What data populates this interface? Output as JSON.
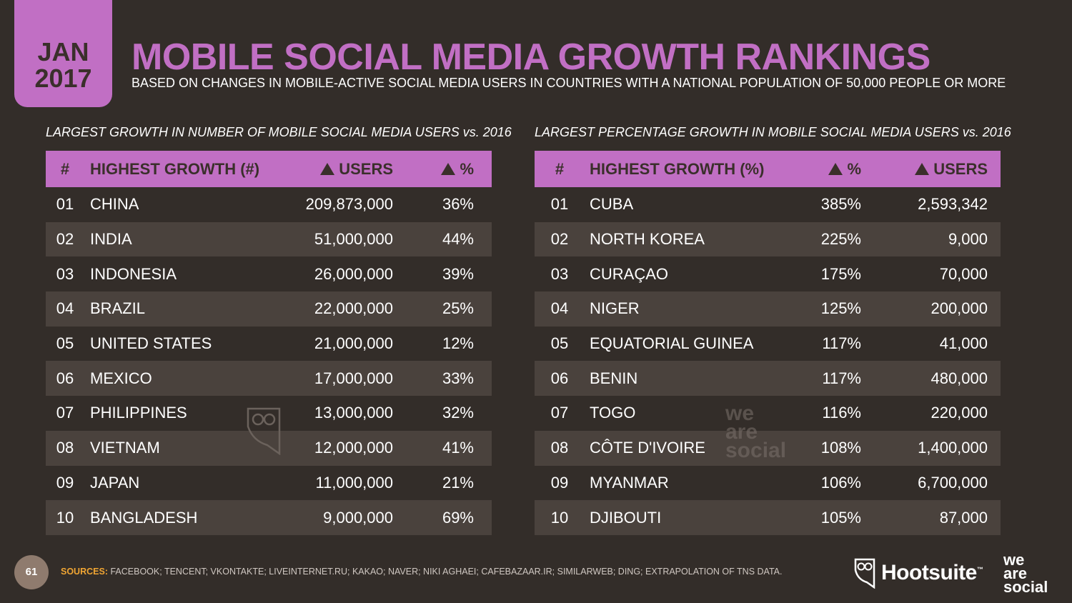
{
  "header": {
    "month": "JAN",
    "year": "2017",
    "title": "MOBILE SOCIAL MEDIA GROWTH RANKINGS",
    "subtitle": "BASED ON CHANGES IN MOBILE-ACTIVE SOCIAL MEDIA USERS IN COUNTRIES WITH A NATIONAL POPULATION OF 50,000 PEOPLE OR MORE"
  },
  "left_table": {
    "label": "LARGEST GROWTH IN NUMBER OF MOBILE SOCIAL MEDIA USERS vs. 2016",
    "headers": {
      "rank": "#",
      "name": "HIGHEST GROWTH (#)",
      "col3": "USERS",
      "col4": "%"
    },
    "rows": [
      {
        "rank": "01",
        "name": "CHINA",
        "c3": "209,873,000",
        "c4": "36%"
      },
      {
        "rank": "02",
        "name": "INDIA",
        "c3": "51,000,000",
        "c4": "44%"
      },
      {
        "rank": "03",
        "name": "INDONESIA",
        "c3": "26,000,000",
        "c4": "39%"
      },
      {
        "rank": "04",
        "name": "BRAZIL",
        "c3": "22,000,000",
        "c4": "25%"
      },
      {
        "rank": "05",
        "name": "UNITED STATES",
        "c3": "21,000,000",
        "c4": "12%"
      },
      {
        "rank": "06",
        "name": "MEXICO",
        "c3": "17,000,000",
        "c4": "33%"
      },
      {
        "rank": "07",
        "name": "PHILIPPINES",
        "c3": "13,000,000",
        "c4": "32%"
      },
      {
        "rank": "08",
        "name": "VIETNAM",
        "c3": "12,000,000",
        "c4": "41%"
      },
      {
        "rank": "09",
        "name": "JAPAN",
        "c3": "11,000,000",
        "c4": "21%"
      },
      {
        "rank": "10",
        "name": "BANGLADESH",
        "c3": "9,000,000",
        "c4": "69%"
      }
    ]
  },
  "right_table": {
    "label": "LARGEST PERCENTAGE GROWTH IN MOBILE SOCIAL MEDIA USERS vs. 2016",
    "headers": {
      "rank": "#",
      "name": "HIGHEST GROWTH (%)",
      "col3": "%",
      "col4": "USERS"
    },
    "rows": [
      {
        "rank": "01",
        "name": "CUBA",
        "c3": "385%",
        "c4": "2,593,342"
      },
      {
        "rank": "02",
        "name": "NORTH KOREA",
        "c3": "225%",
        "c4": "9,000"
      },
      {
        "rank": "03",
        "name": "CURAÇAO",
        "c3": "175%",
        "c4": "70,000"
      },
      {
        "rank": "04",
        "name": "NIGER",
        "c3": "125%",
        "c4": "200,000"
      },
      {
        "rank": "05",
        "name": "EQUATORIAL GUINEA",
        "c3": "117%",
        "c4": "41,000"
      },
      {
        "rank": "06",
        "name": "BENIN",
        "c3": "117%",
        "c4": "480,000"
      },
      {
        "rank": "07",
        "name": "TOGO",
        "c3": "116%",
        "c4": "220,000"
      },
      {
        "rank": "08",
        "name": "CÔTE D'IVOIRE",
        "c3": "108%",
        "c4": "1,400,000"
      },
      {
        "rank": "09",
        "name": "MYANMAR",
        "c3": "106%",
        "c4": "6,700,000"
      },
      {
        "rank": "10",
        "name": "DJIBOUTI",
        "c3": "105%",
        "c4": "87,000"
      }
    ]
  },
  "footer": {
    "page_number": "61",
    "sources_label": "SOURCES:",
    "sources_text": "FACEBOOK; TENCENT; VKONTAKTE; LIVEINTERNET.RU; KAKAO; NAVER; NIKI AGHAEI; CAFEBAZAAR.IR; SIMILARWEB; DING; EXTRAPOLATION OF TNS DATA.",
    "hootsuite": "Hootsuite",
    "hootsuite_tm": "™",
    "was_line1": "we",
    "was_line2": "are",
    "was_line3": "social"
  },
  "watermark": {
    "line1": "we",
    "line2": "are",
    "line3": "social"
  },
  "colors": {
    "accent": "#c16fc4",
    "background": "#332d29",
    "row_alt": "#4a423d"
  }
}
